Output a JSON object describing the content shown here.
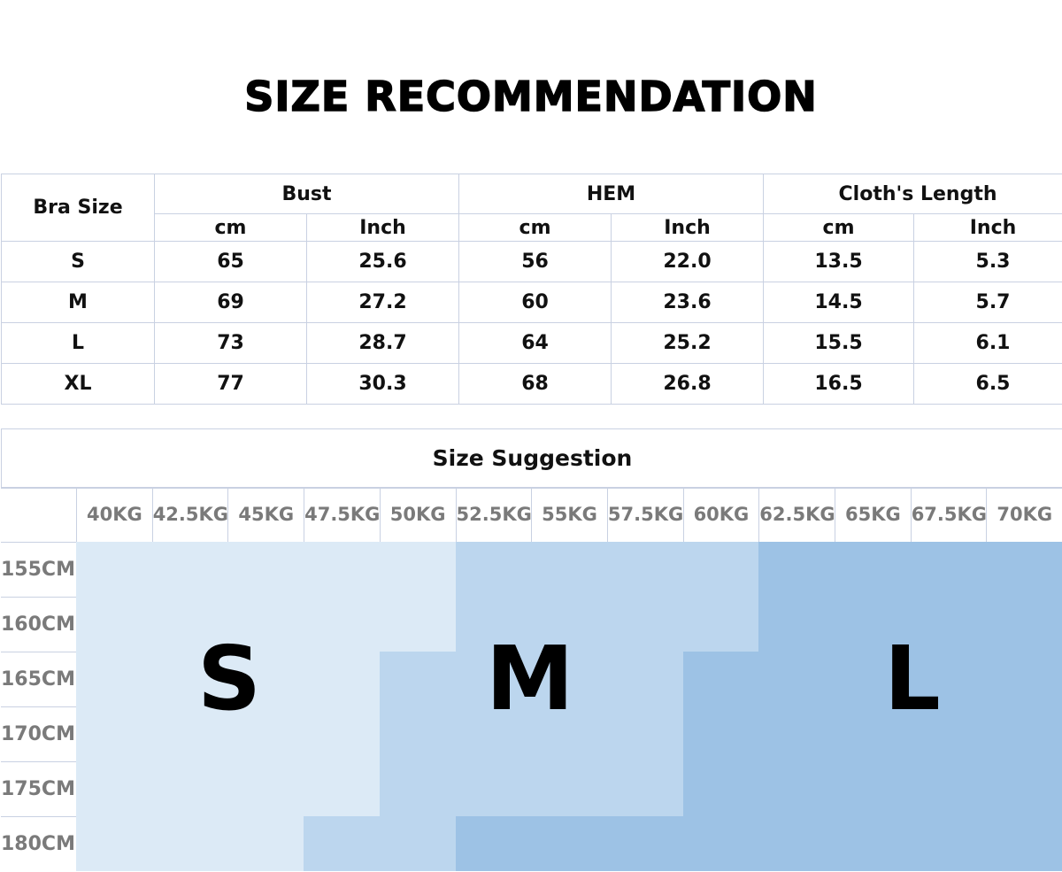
{
  "title": "SIZE RECOMMENDATION",
  "spec_table": {
    "row_header": "Bra Size",
    "groups": [
      "Bust",
      "HEM",
      "Cloth's Length"
    ],
    "units": [
      "cm",
      "Inch",
      "cm",
      "Inch",
      "cm",
      "Inch"
    ],
    "rows": [
      {
        "size": "S",
        "values": [
          "65",
          "25.6",
          "56",
          "22.0",
          "13.5",
          "5.3"
        ]
      },
      {
        "size": "M",
        "values": [
          "69",
          "27.2",
          "60",
          "23.6",
          "14.5",
          "5.7"
        ]
      },
      {
        "size": "L",
        "values": [
          "73",
          "28.7",
          "64",
          "25.2",
          "15.5",
          "6.1"
        ]
      },
      {
        "size": "XL",
        "values": [
          "77",
          "30.3",
          "68",
          "26.8",
          "16.5",
          "6.5"
        ]
      }
    ]
  },
  "suggestion": {
    "title": "Size Suggestion",
    "weights": [
      "40KG",
      "42.5KG",
      "45KG",
      "47.5KG",
      "50KG",
      "52.5KG",
      "55KG",
      "57.5KG",
      "60KG",
      "62.5KG",
      "65KG",
      "67.5KG",
      "70KG"
    ],
    "heights": [
      "155CM",
      "160CM",
      "165CM",
      "170CM",
      "175CM",
      "180CM"
    ],
    "grid": [
      "SSSSSMMMMLLLL",
      "SSSSSMMMMLLLL",
      "SSSSMMMMLLLLL",
      "SSSSMMMMLLLLL",
      "SSSSMMMMLLLLL",
      "SSSMMLLLLLLLL"
    ],
    "size_labels": {
      "S": "S",
      "M": "M",
      "L": "L"
    },
    "colors": {
      "S": "#dceaf6",
      "M": "#bcd6ee",
      "L": "#9dc2e5"
    }
  }
}
